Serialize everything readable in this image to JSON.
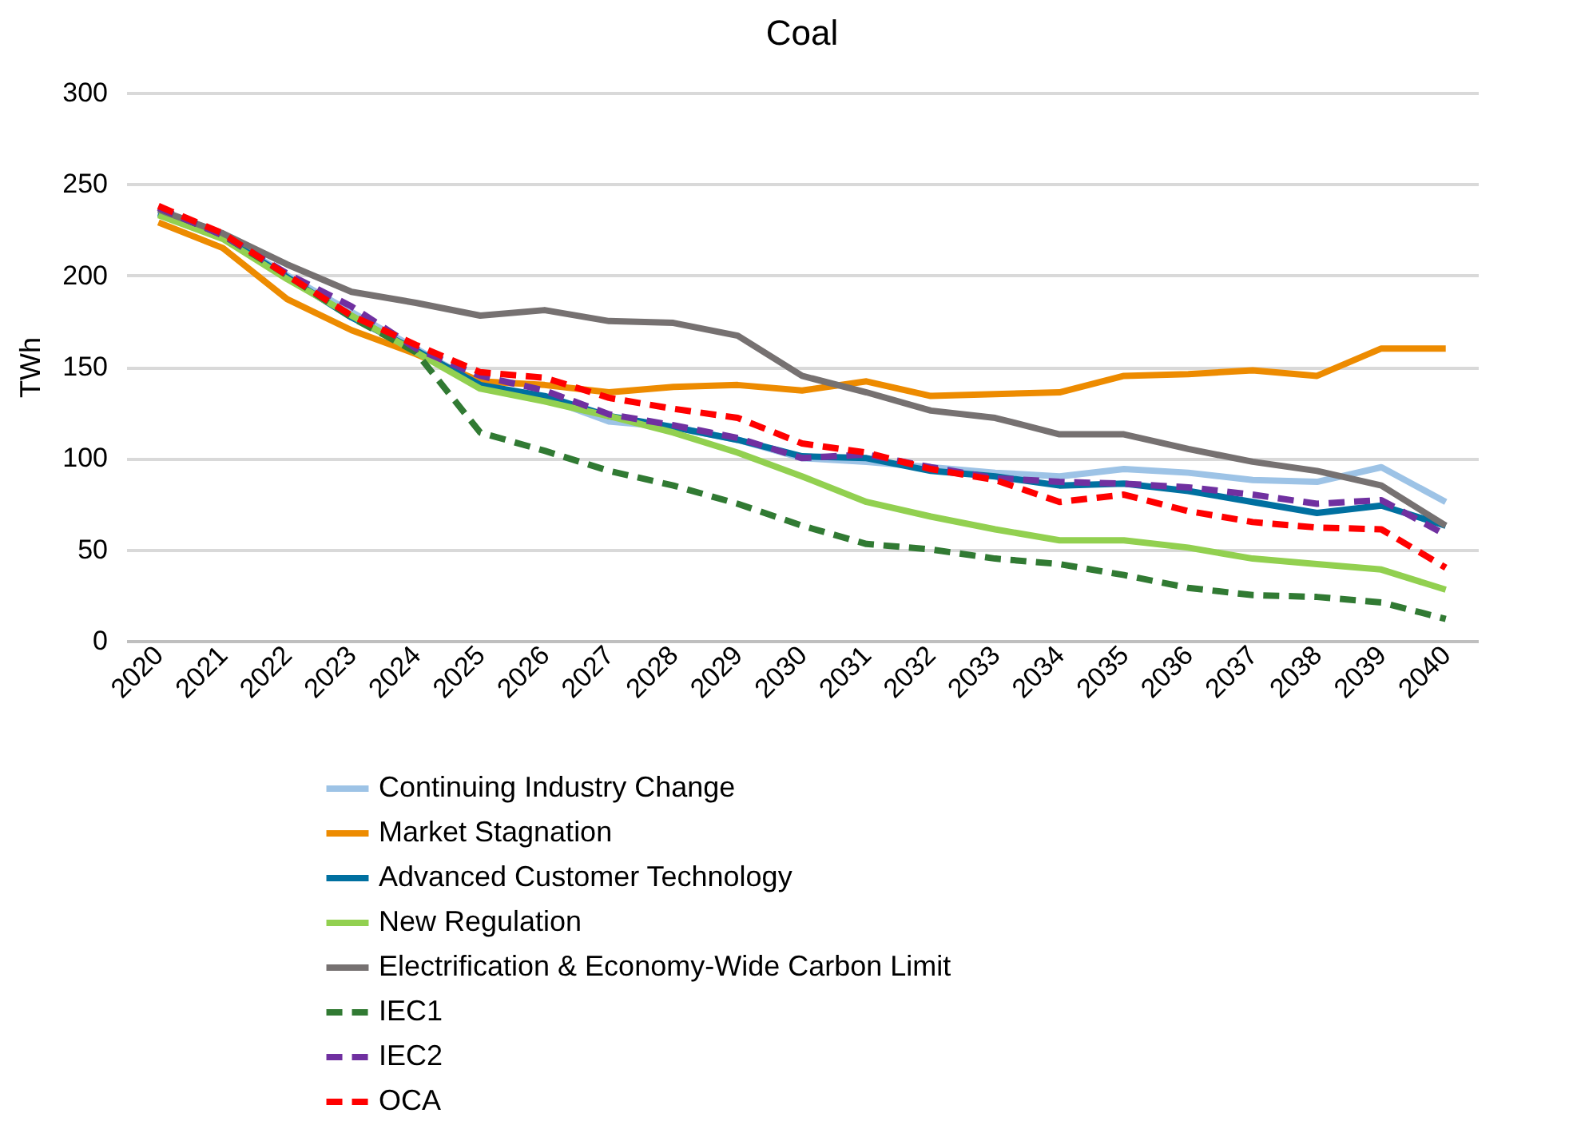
{
  "chart_data": {
    "type": "line",
    "title": "Coal",
    "ylabel": "TWh",
    "categories": [
      "2020",
      "2021",
      "2022",
      "2023",
      "2024",
      "2025",
      "2026",
      "2027",
      "2028",
      "2029",
      "2030",
      "2031",
      "2032",
      "2033",
      "2034",
      "2035",
      "2036",
      "2037",
      "2038",
      "2039",
      "2040"
    ],
    "ylim": [
      0,
      300
    ],
    "yticks": [
      0,
      50,
      100,
      150,
      200,
      250,
      300
    ],
    "grid": "y",
    "legend": "bottom",
    "series": [
      {
        "name": "Continuing Industry Change",
        "color": "#9dc3e6",
        "line_style": "solid",
        "values": [
          235,
          222,
          200,
          180,
          160,
          140,
          133,
          120,
          117,
          110,
          100,
          98,
          95,
          92,
          90,
          94,
          92,
          88,
          87,
          95,
          76
        ]
      },
      {
        "name": "Market Stagnation",
        "color": "#ed8b00",
        "line_style": "solid",
        "values": [
          229,
          215,
          187,
          170,
          157,
          142,
          140,
          136,
          139,
          140,
          137,
          142,
          134,
          135,
          136,
          145,
          146,
          148,
          145,
          160,
          160
        ]
      },
      {
        "name": "Advanced Customer Technology",
        "color": "#0070a0",
        "line_style": "solid",
        "values": [
          234,
          221,
          199,
          177,
          159,
          140,
          134,
          123,
          117,
          110,
          101,
          100,
          93,
          90,
          85,
          86,
          82,
          76,
          70,
          74,
          63
        ]
      },
      {
        "name": "New Regulation",
        "color": "#92d050",
        "line_style": "solid",
        "values": [
          233,
          220,
          198,
          178,
          158,
          138,
          131,
          123,
          114,
          103,
          90,
          76,
          68,
          61,
          55,
          55,
          51,
          45,
          42,
          39,
          28
        ]
      },
      {
        "name": "Electrification & Economy-Wide Carbon Limit",
        "color": "#767171",
        "line_style": "solid",
        "values": [
          236,
          223,
          206,
          191,
          185,
          178,
          181,
          175,
          174,
          167,
          145,
          136,
          126,
          122,
          113,
          113,
          105,
          98,
          93,
          85,
          63
        ]
      },
      {
        "name": "IEC1",
        "color": "#317a33",
        "line_style": "dashed",
        "values": [
          237,
          222,
          200,
          177,
          158,
          114,
          104,
          93,
          85,
          75,
          63,
          53,
          50,
          45,
          42,
          36,
          29,
          25,
          24,
          21,
          12
        ]
      },
      {
        "name": "IEC2",
        "color": "#7030a0",
        "line_style": "dashed",
        "values": [
          237,
          222,
          201,
          183,
          160,
          145,
          137,
          124,
          118,
          111,
          100,
          102,
          95,
          89,
          87,
          86,
          84,
          80,
          75,
          77,
          58
        ]
      },
      {
        "name": "OCA",
        "color": "#ff0000",
        "line_style": "dashed",
        "values": [
          238,
          223,
          200,
          178,
          162,
          147,
          144,
          133,
          127,
          122,
          108,
          103,
          94,
          88,
          76,
          80,
          71,
          65,
          62,
          61,
          40
        ]
      }
    ]
  }
}
